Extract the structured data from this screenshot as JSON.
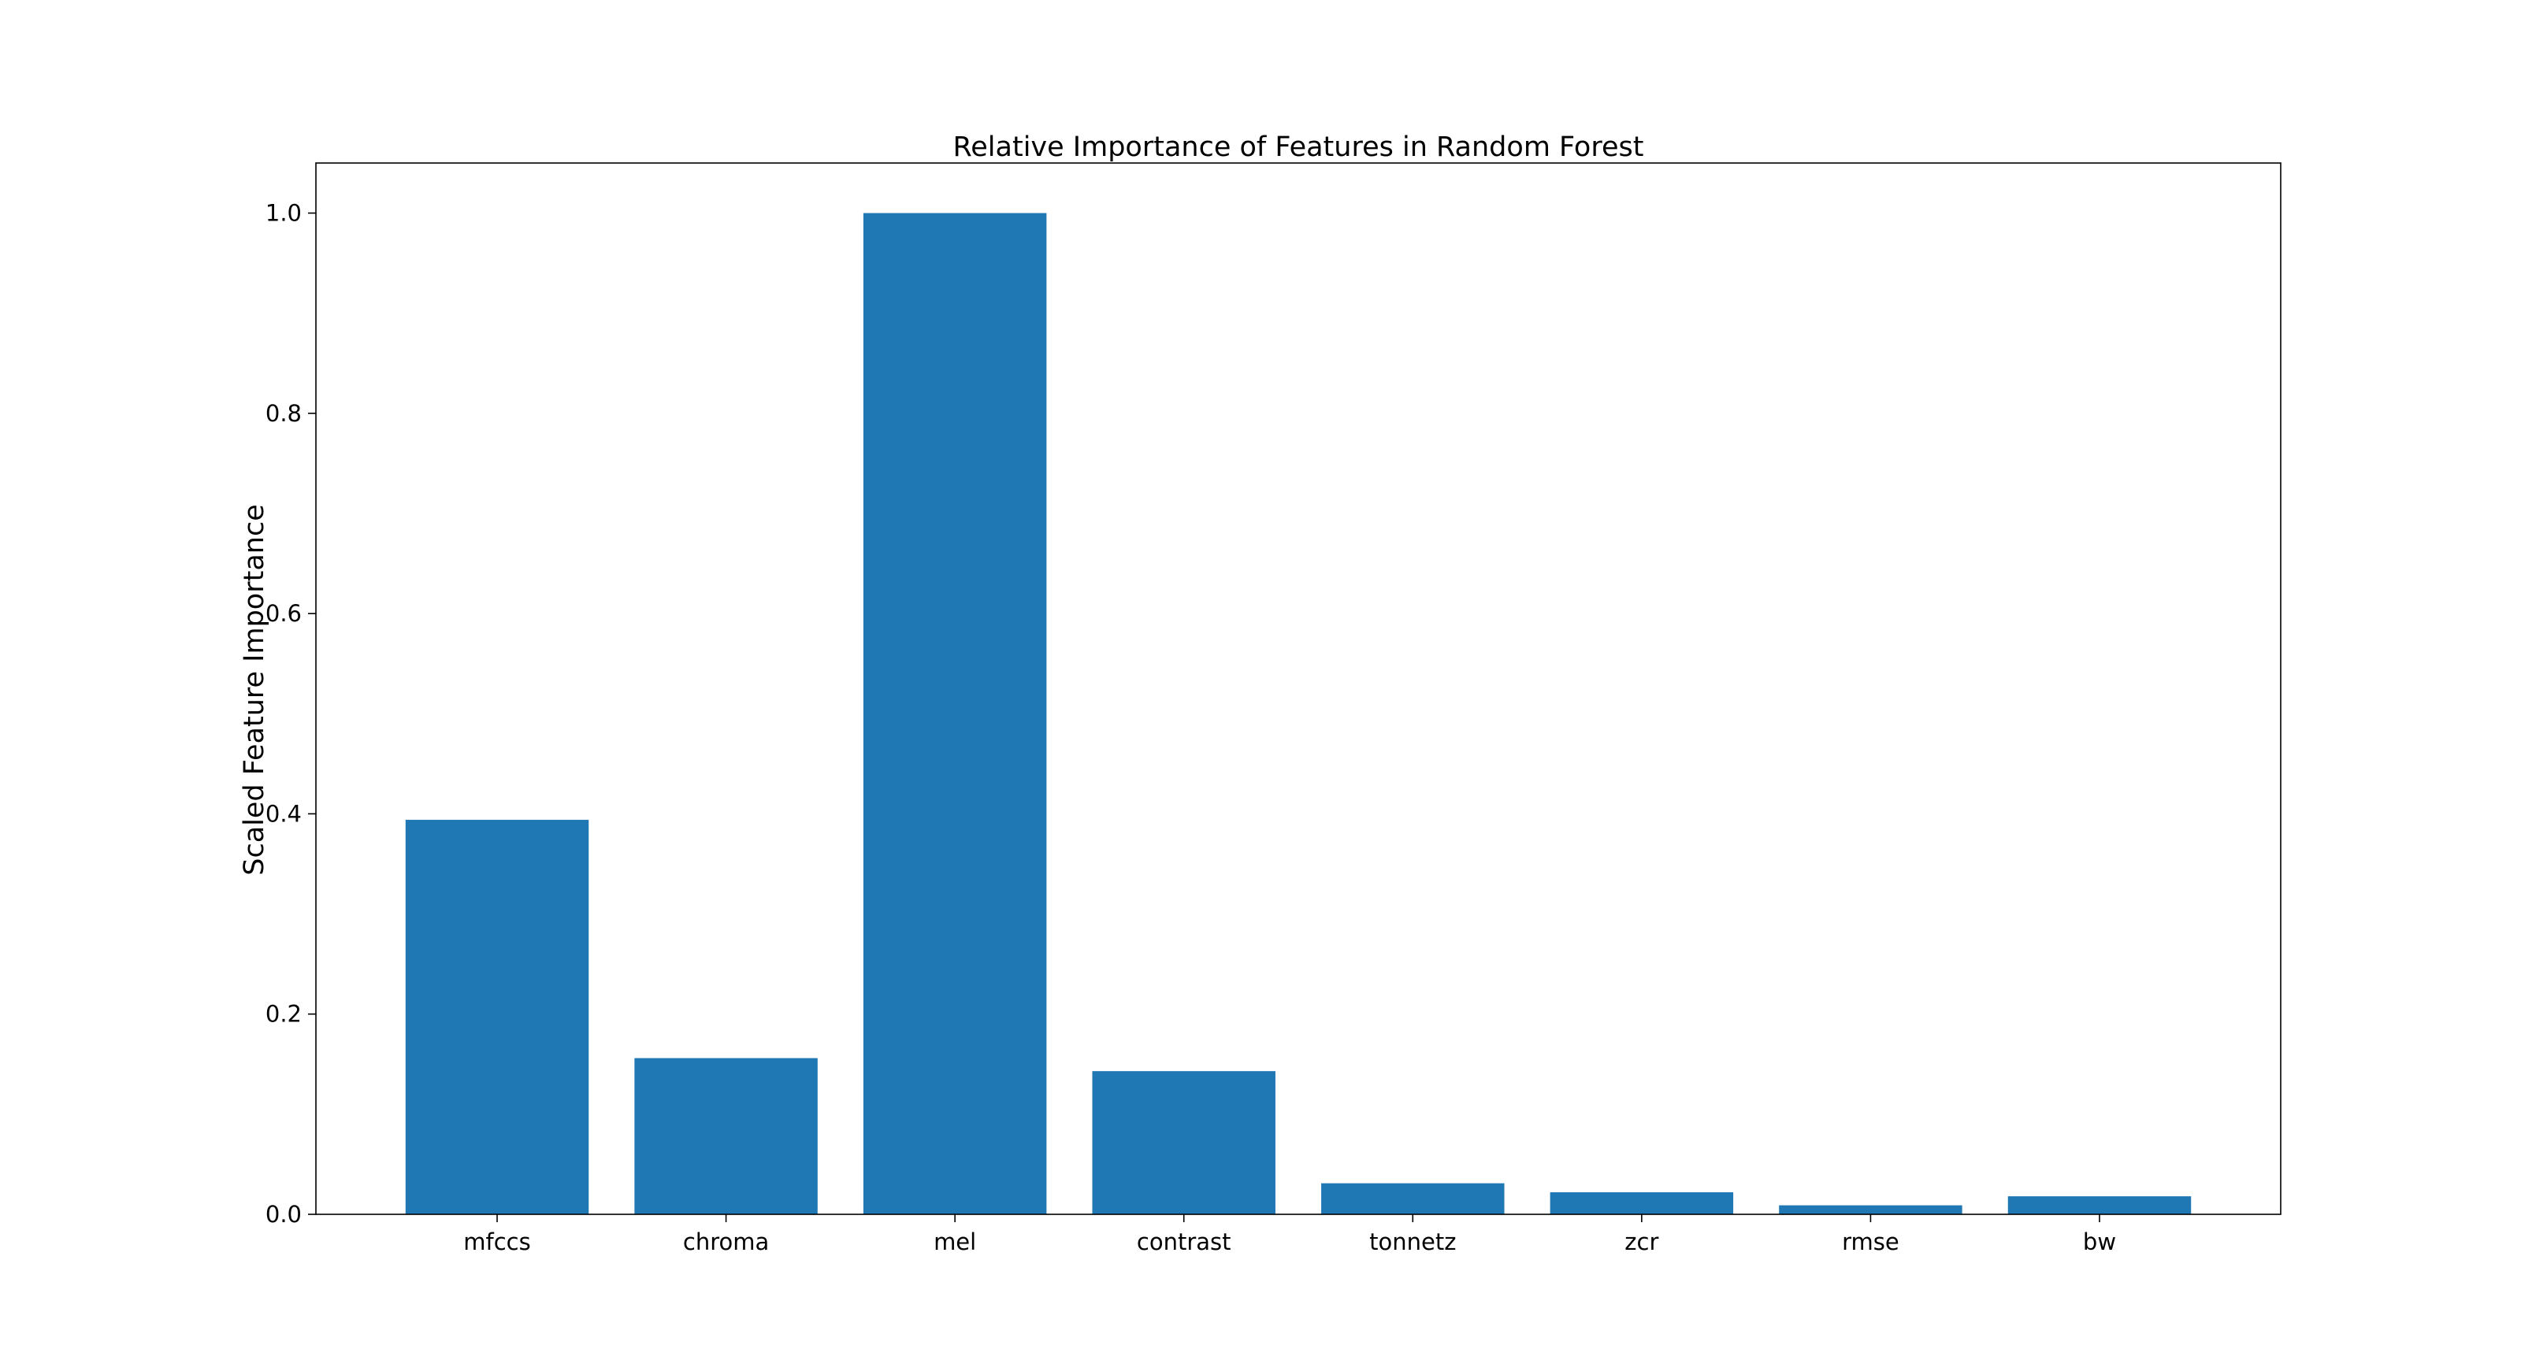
{
  "chart_data": {
    "type": "bar",
    "title": "Relative Importance of Features in Random Forest",
    "xlabel": "",
    "ylabel": "Scaled Feature Importance",
    "categories": [
      "mfccs",
      "chroma",
      "mel",
      "contrast",
      "tonnetz",
      "zcr",
      "rmse",
      "bw"
    ],
    "values": [
      0.394,
      0.156,
      1.0,
      0.143,
      0.031,
      0.022,
      0.009,
      0.018
    ],
    "ylim": [
      0,
      1.05
    ],
    "yticks": [
      "0.0",
      "0.2",
      "0.4",
      "0.6",
      "0.8",
      "1.0"
    ],
    "grid": false,
    "legend": "none",
    "bar_color": "#1f77b4"
  }
}
